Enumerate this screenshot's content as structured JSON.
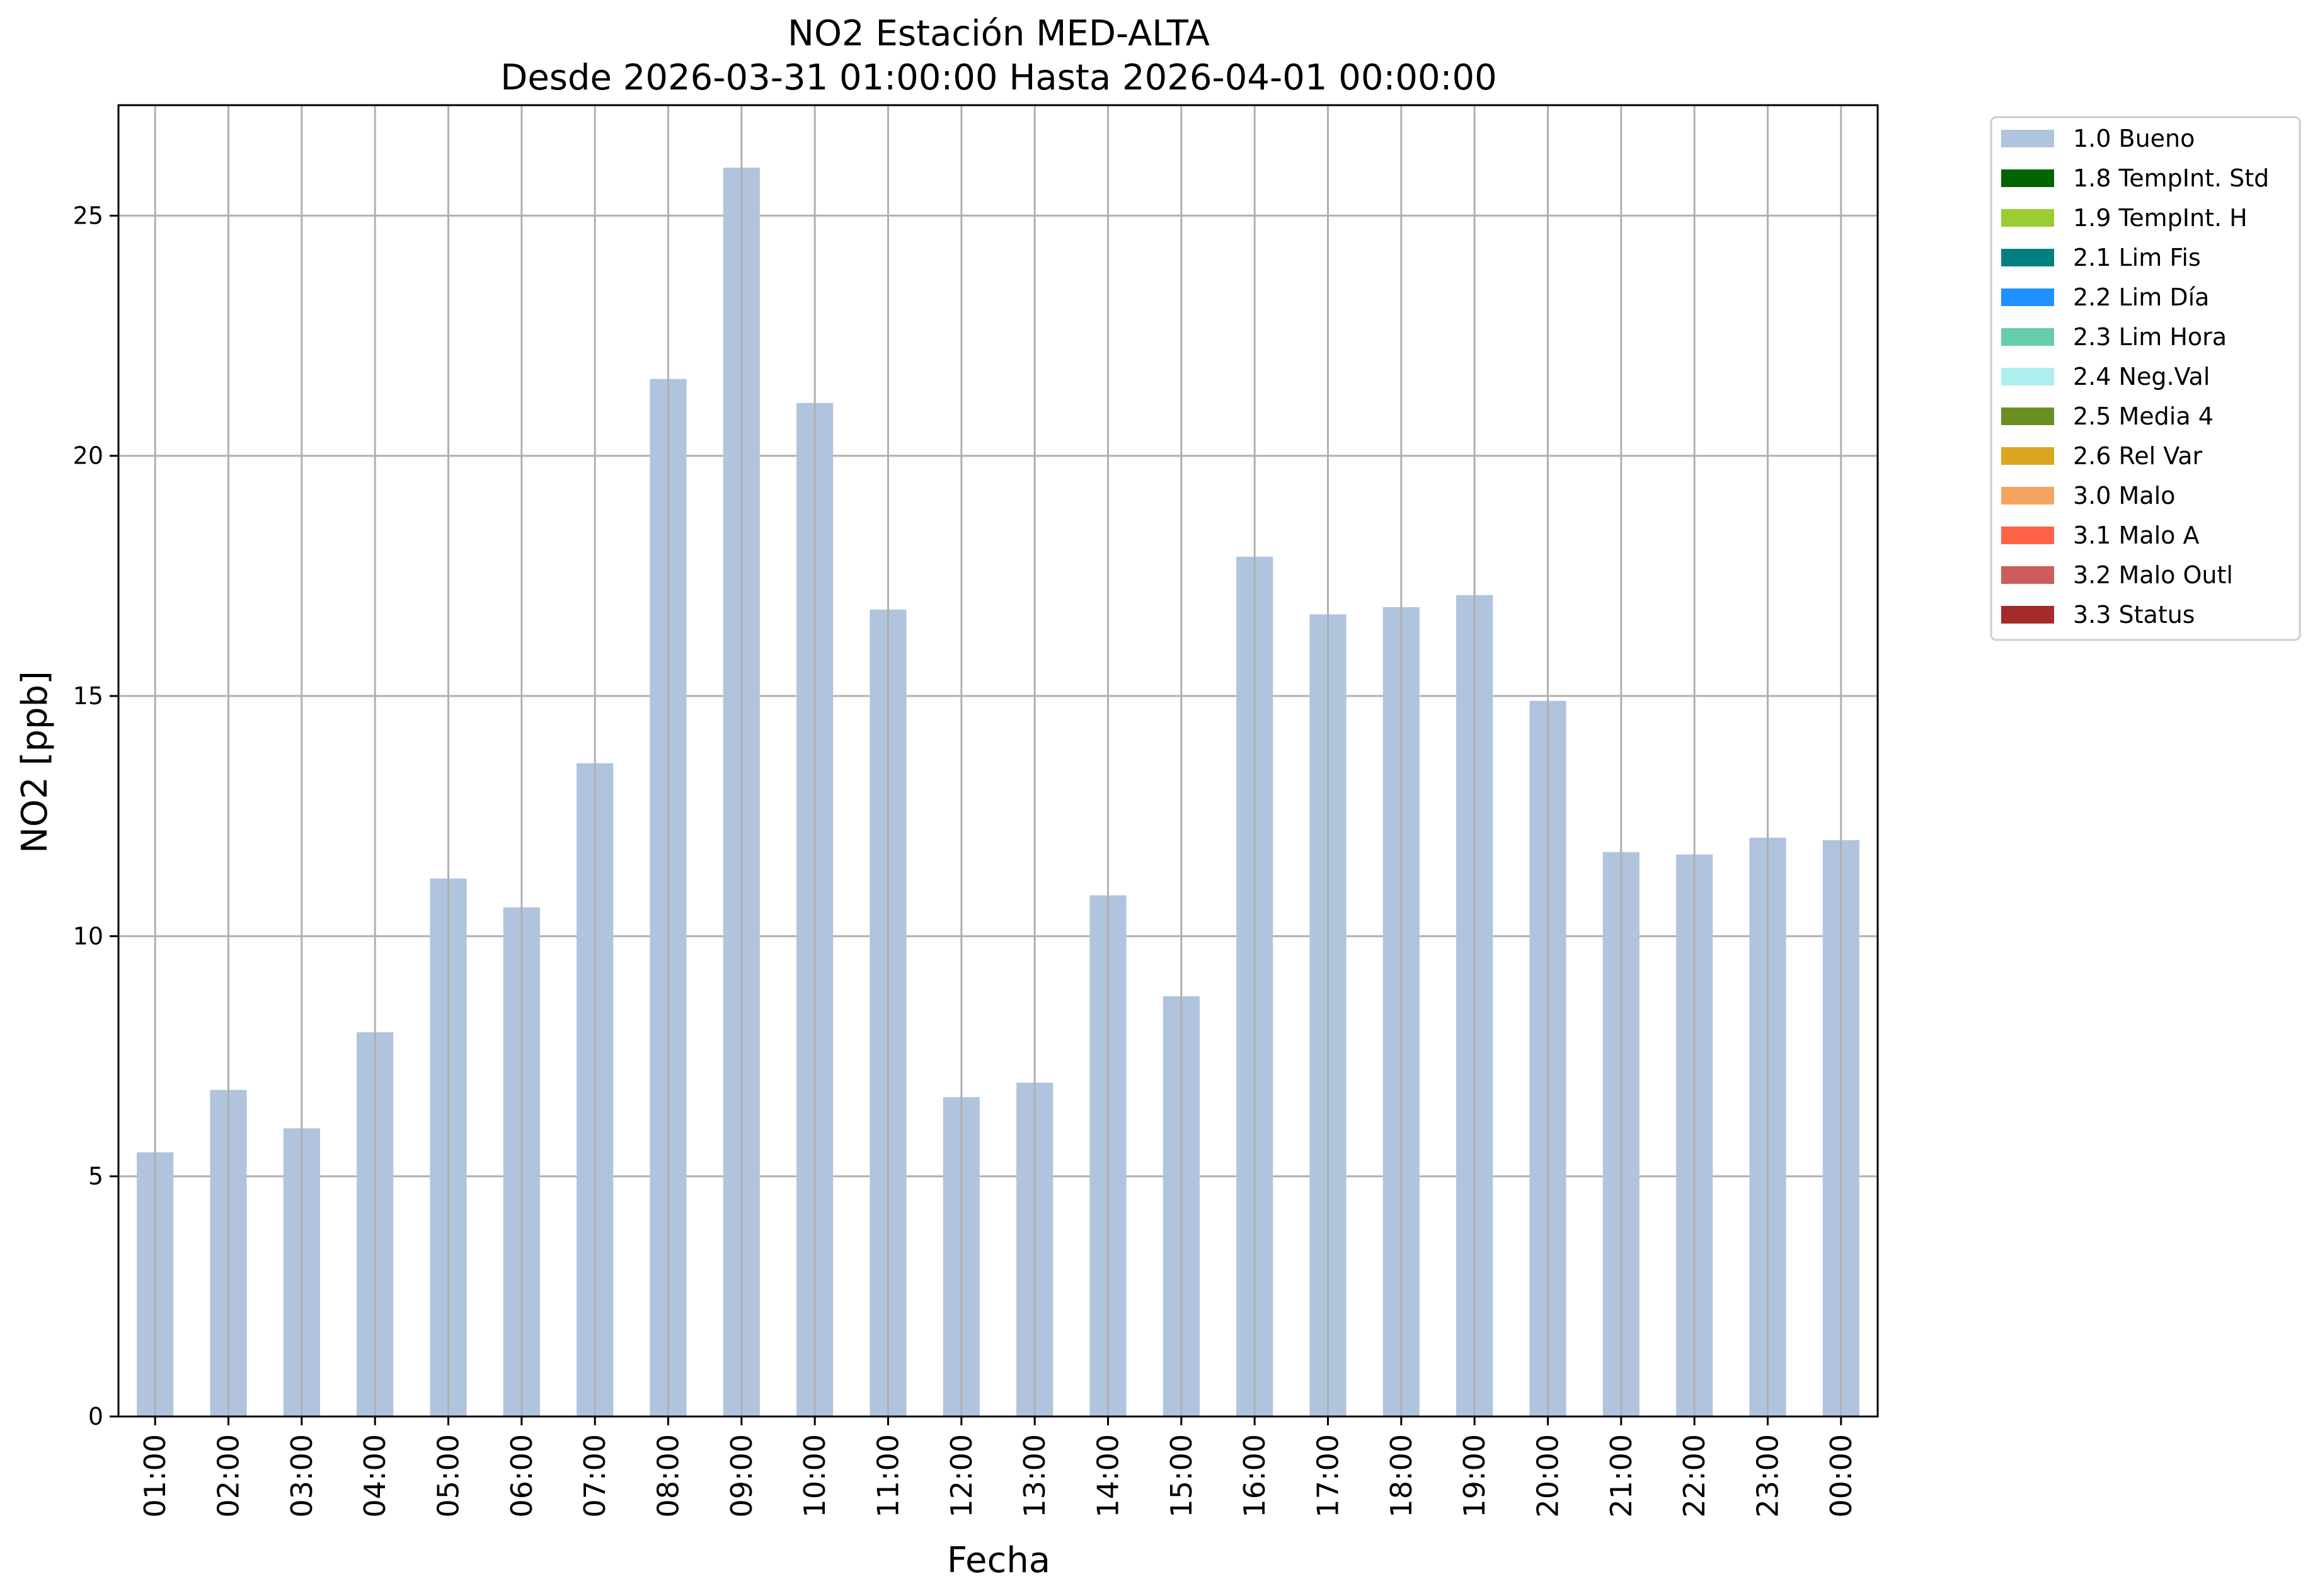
{
  "chart_data": {
    "type": "bar",
    "title": "NO2 Estación MED-ALTA",
    "subtitle": "Desde 2026-03-31 01:00:00 Hasta 2026-04-01 00:00:00",
    "xlabel": "Fecha",
    "ylabel": "NO2 [ppb]",
    "ylim": [
      0,
      27.3
    ],
    "yticks": [
      0,
      5,
      10,
      15,
      20,
      25
    ],
    "grid": true,
    "legend_position": "outside-top-right",
    "categories": [
      "01:00",
      "02:00",
      "03:00",
      "04:00",
      "05:00",
      "06:00",
      "07:00",
      "08:00",
      "09:00",
      "10:00",
      "11:00",
      "12:00",
      "13:00",
      "14:00",
      "15:00",
      "16:00",
      "17:00",
      "18:00",
      "19:00",
      "20:00",
      "21:00",
      "22:00",
      "23:00",
      "00:00"
    ],
    "series": [
      {
        "name": "1.0 Bueno",
        "color": "#b0c4de",
        "values": [
          5.5,
          6.8,
          6.0,
          8.0,
          11.2,
          10.6,
          13.6,
          21.6,
          26.0,
          21.1,
          16.8,
          6.65,
          6.95,
          10.85,
          8.75,
          17.9,
          16.7,
          16.85,
          17.1,
          14.9,
          11.75,
          11.7,
          12.05,
          12.0
        ]
      }
    ],
    "legend": [
      {
        "label": "1.0 Bueno",
        "color": "#b0c4de"
      },
      {
        "label": "1.8 TempInt. Std",
        "color": "#006400"
      },
      {
        "label": "1.9 TempInt. H",
        "color": "#9acd32"
      },
      {
        "label": "2.1 Lim Fis",
        "color": "#008080"
      },
      {
        "label": "2.2 Lim Día",
        "color": "#1e90ff"
      },
      {
        "label": "2.3 Lim Hora",
        "color": "#66cdaa"
      },
      {
        "label": "2.4 Neg.Val",
        "color": "#afeeee"
      },
      {
        "label": "2.5 Media 4",
        "color": "#6b8e23"
      },
      {
        "label": "2.6 Rel Var",
        "color": "#daa520"
      },
      {
        "label": "3.0 Malo",
        "color": "#f4a460"
      },
      {
        "label": "3.1 Malo A",
        "color": "#ff6347"
      },
      {
        "label": "3.2 Malo Outl",
        "color": "#cd5c5c"
      },
      {
        "label": "3.3 Status",
        "color": "#a52a2a"
      }
    ]
  }
}
